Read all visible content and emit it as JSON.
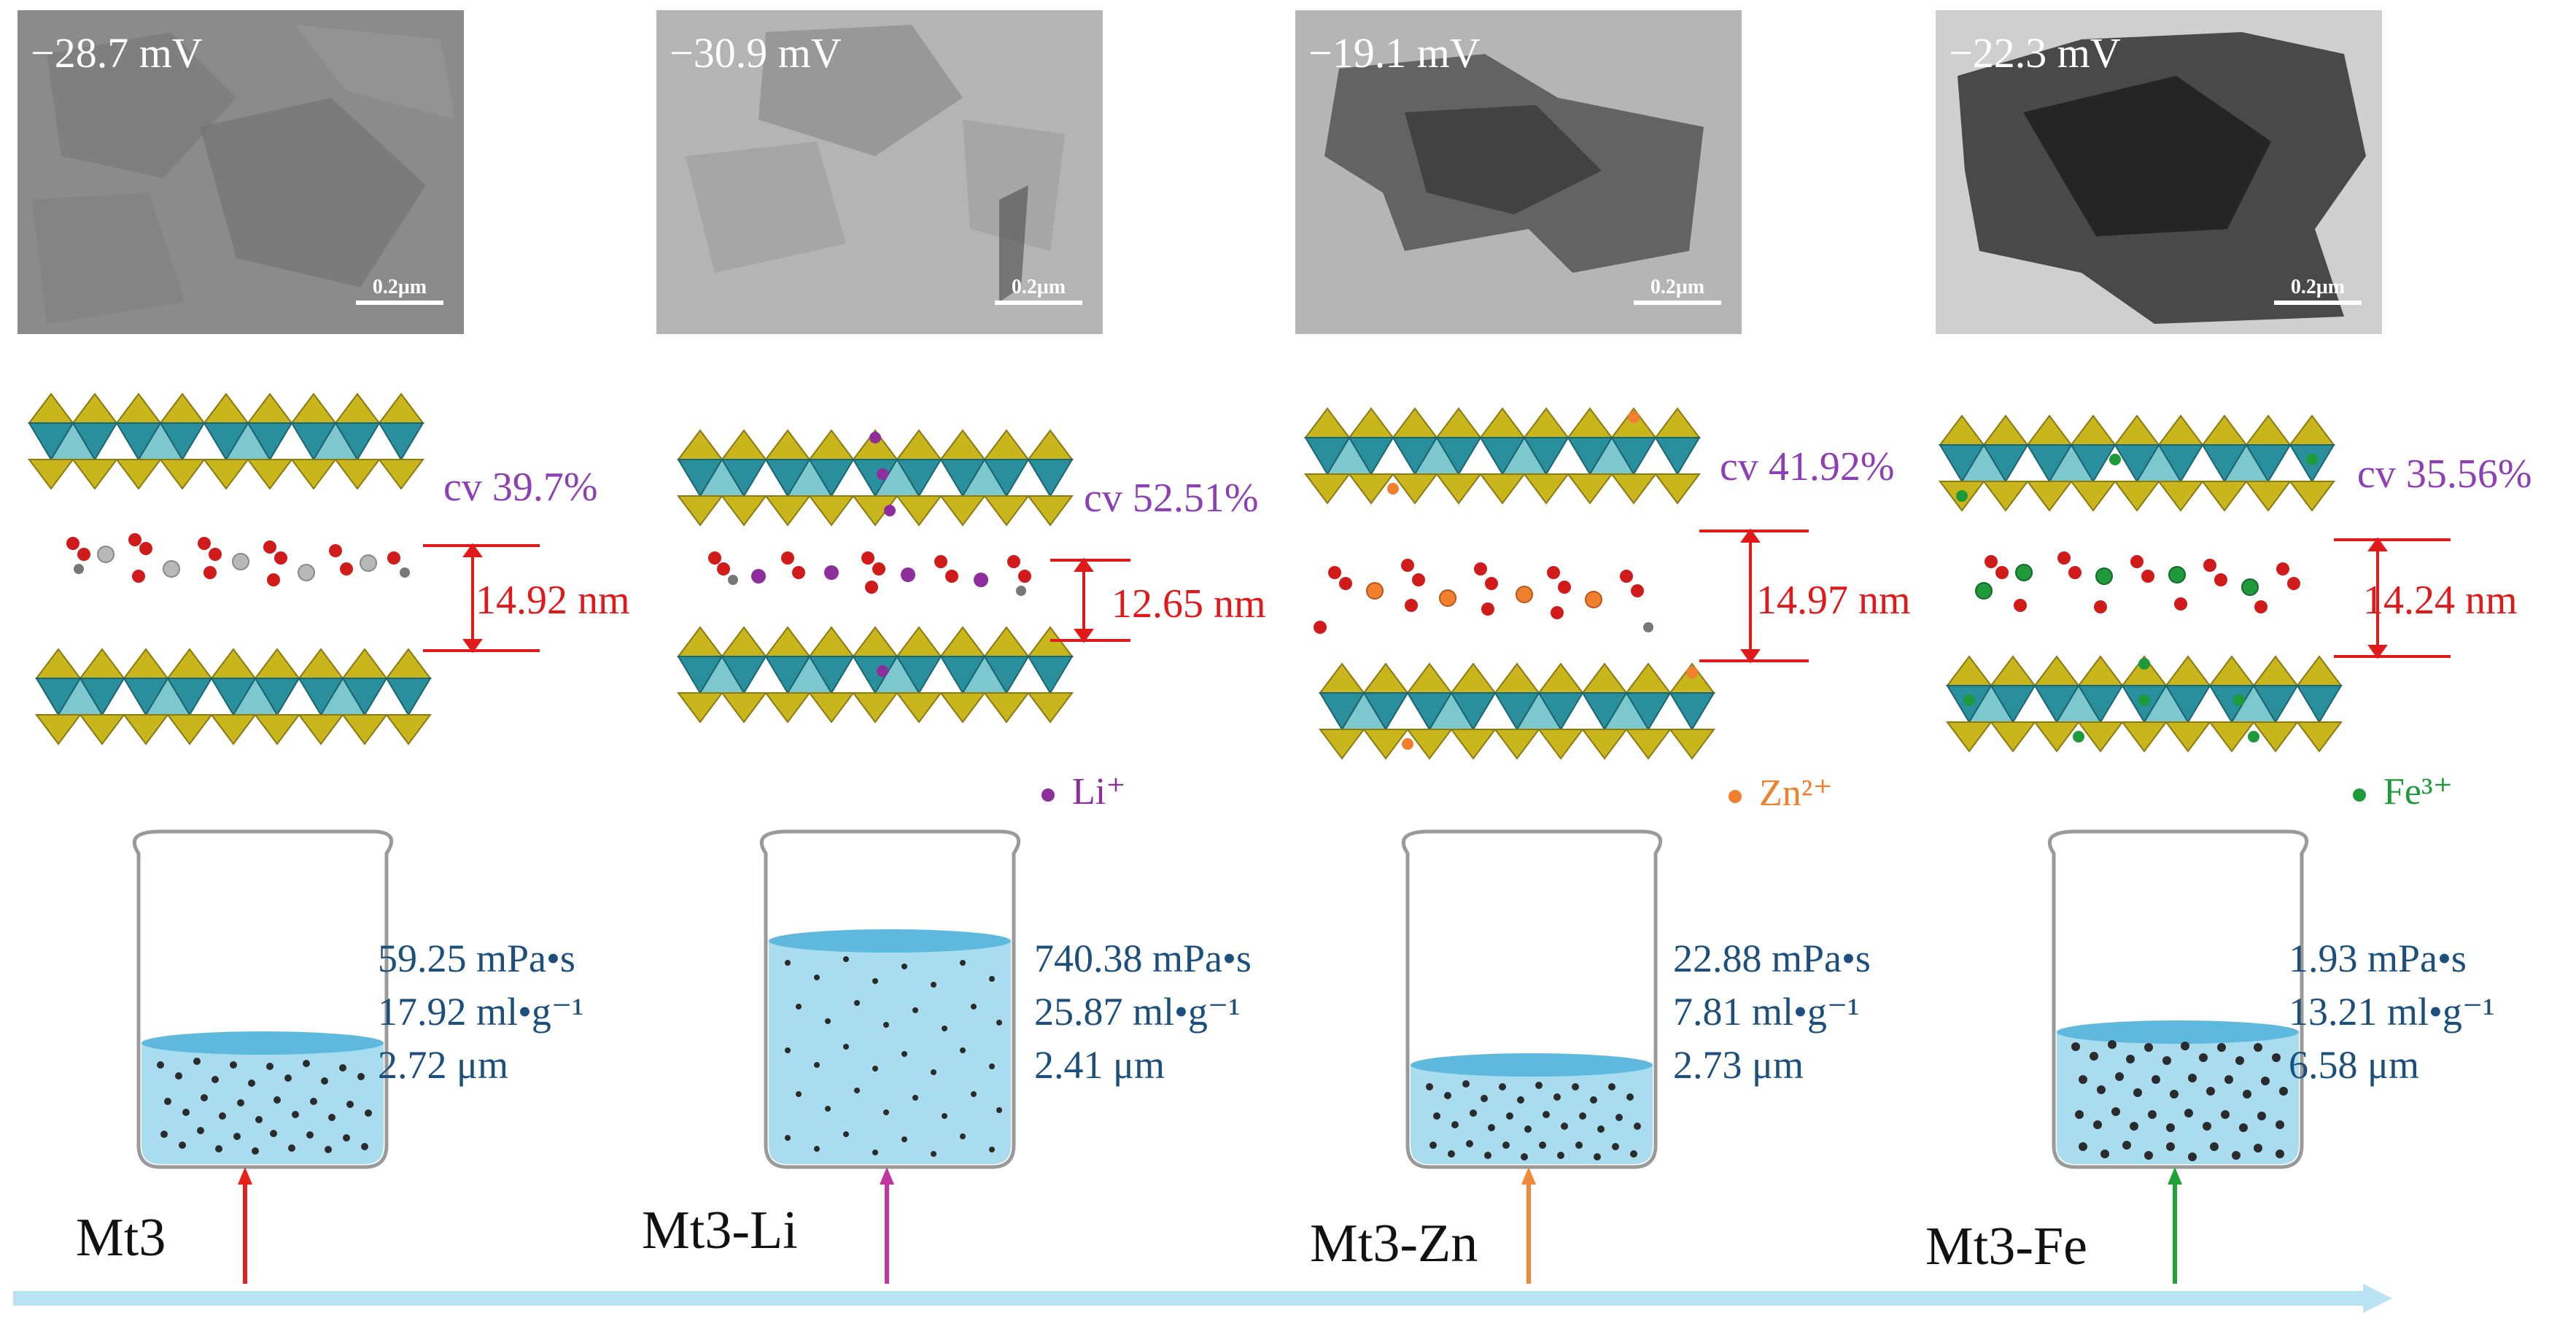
{
  "panels": [
    {
      "sample": "Mt3",
      "zeta": "−28.7 mV",
      "scale": "0.2μm",
      "cv": "cv 39.7%",
      "spacing": "14.92 nm",
      "ion": "",
      "ion_color": "#b8b8b8",
      "props": [
        "59.25 mPa•s",
        "17.92 ml•g⁻¹",
        "2.72 μm"
      ],
      "arrow_color": "#e8201c",
      "tem_tone": "#8a8a8a"
    },
    {
      "sample": "Mt3-Li",
      "zeta": "−30.9 mV",
      "scale": "0.2μm",
      "cv": "cv 52.51%",
      "spacing": "12.65 nm",
      "ion": "Li⁺",
      "ion_color": "#8e2d9c",
      "props": [
        "740.38 mPa•s",
        "25.87 ml•g⁻¹",
        "2.41 μm"
      ],
      "arrow_color": "#c2349e",
      "tem_tone": "#b0b0b0"
    },
    {
      "sample": "Mt3-Zn",
      "zeta": "−19.1 mV",
      "scale": "0.2μm",
      "cv": "cv 41.92%",
      "spacing": "14.97 nm",
      "ion": "Zn²⁺",
      "ion_color": "#f07f2e",
      "props": [
        "22.88 mPa•s",
        "7.81 ml•g⁻¹",
        "2.73 μm"
      ],
      "arrow_color": "#f08a3a",
      "tem_tone": "#7a7a7a"
    },
    {
      "sample": "Mt3-Fe",
      "zeta": "−22.3 mV",
      "scale": "0.2μm",
      "cv": "cv 35.56%",
      "spacing": "14.24 nm",
      "ion": "Fe³⁺",
      "ion_color": "#1f9a3a",
      "props": [
        "1.93 mPa•s",
        "13.21 ml•g⁻¹",
        "6.58 μm"
      ],
      "arrow_color": "#22a33a",
      "tem_tone": "#9a9a9a"
    }
  ],
  "colors": {
    "tetrahedra": "#c9b51c",
    "octahedra": "#2a8f9c",
    "water_o": "#d11a1a",
    "water_h": "#777777",
    "liquid": "#a9dcef",
    "axis": "#b9e2f3",
    "particles": "#2b2b2b"
  }
}
